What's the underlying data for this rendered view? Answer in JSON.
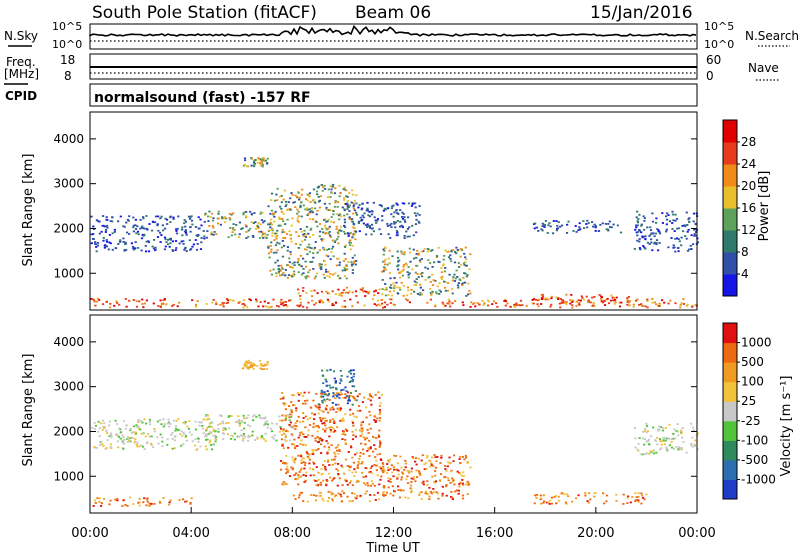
{
  "header": {
    "title": "South Pole Station (fitACF)",
    "beam": "Beam 06",
    "date": "15/Jan/2016"
  },
  "top_panels": {
    "nsky_label": "N.Sky",
    "nsky_ticks": [
      "10^5",
      "10^0"
    ],
    "nsearch_label": "N.Search",
    "nsearch_ticks": [
      "10^5",
      "10^0"
    ],
    "freq_label": "Freq.",
    "freq_unit": "[MHz]",
    "freq_ticks": [
      "18",
      "8"
    ],
    "nave_label": "Nave",
    "nave_ticks": [
      "60",
      "0"
    ],
    "cpid_label": "CPID",
    "cpid_text": "normalsound (fast) -157 RF"
  },
  "chart_data": [
    {
      "type": "heatmap",
      "panel": "power",
      "ylabel": "Slant Range [km]",
      "ylim": [
        180,
        4600
      ],
      "yticks": [
        "1000",
        "2000",
        "3000",
        "4000"
      ],
      "xlim_hours": [
        0,
        24
      ],
      "colorbar_label": "Power [dB]",
      "colorbar_ticks": [
        "4",
        "8",
        "12",
        "16",
        "20",
        "24",
        "28"
      ],
      "colorbar_colors": [
        "#1515e6",
        "#2f4fa8",
        "#2f7a6a",
        "#5ea15a",
        "#e9c02b",
        "#f08b1a",
        "#e83b1b",
        "#e00000"
      ],
      "echo_regions": [
        {
          "t": [
            0.0,
            24.0
          ],
          "r": [
            250,
            450
          ],
          "level": "high"
        },
        {
          "t": [
            8.0,
            11.5
          ],
          "r": [
            500,
            700
          ],
          "level": "high"
        },
        {
          "t": [
            17.5,
            21.5
          ],
          "r": [
            350,
            550
          ],
          "level": "high"
        },
        {
          "t": [
            0.0,
            4.5
          ],
          "r": [
            1500,
            2300
          ],
          "level": "low"
        },
        {
          "t": [
            4.5,
            7.5
          ],
          "r": [
            1800,
            2400
          ],
          "level": "mid"
        },
        {
          "t": [
            6.0,
            7.0
          ],
          "r": [
            3400,
            3600
          ],
          "level": "mid"
        },
        {
          "t": [
            7.0,
            10.5
          ],
          "r": [
            900,
            3000
          ],
          "level": "mid"
        },
        {
          "t": [
            10.0,
            13.0
          ],
          "r": [
            1800,
            2600
          ],
          "level": "low"
        },
        {
          "t": [
            11.5,
            15.0
          ],
          "r": [
            500,
            1600
          ],
          "level": "mid"
        },
        {
          "t": [
            17.5,
            21.0
          ],
          "r": [
            1900,
            2200
          ],
          "level": "low"
        },
        {
          "t": [
            21.5,
            24.0
          ],
          "r": [
            1500,
            2400
          ],
          "level": "low"
        }
      ]
    },
    {
      "type": "heatmap",
      "panel": "velocity",
      "ylabel": "Slant Range [km]",
      "ylim": [
        180,
        4600
      ],
      "yticks": [
        "1000",
        "2000",
        "3000",
        "4000"
      ],
      "xlim_hours": [
        0,
        24
      ],
      "xticks": [
        "00:00",
        "04:00",
        "08:00",
        "12:00",
        "16:00",
        "20:00",
        "00:00"
      ],
      "xlabel": "Time UT",
      "colorbar_label": "Velocity [m s⁻¹]",
      "colorbar_ticks": [
        "1000",
        "500",
        "100",
        "25",
        "-25",
        "-100",
        "-500",
        "-1000"
      ],
      "colorbar_colors": [
        "#1e3cc8",
        "#2c6fb0",
        "#2f8a5e",
        "#52c43a",
        "#c8c8c8",
        "#f2c23a",
        "#f09a22",
        "#ee6a10",
        "#e01010"
      ],
      "echo_regions": [
        {
          "t": [
            0.0,
            4.0
          ],
          "r": [
            350,
            550
          ],
          "level": "negative"
        },
        {
          "t": [
            8.0,
            11.5
          ],
          "r": [
            450,
            700
          ],
          "level": "negative"
        },
        {
          "t": [
            17.5,
            22.0
          ],
          "r": [
            400,
            650
          ],
          "level": "negative"
        },
        {
          "t": [
            0.0,
            5.0
          ],
          "r": [
            1600,
            2300
          ],
          "level": "near-zero"
        },
        {
          "t": [
            4.5,
            8.0
          ],
          "r": [
            1800,
            2400
          ],
          "level": "near-zero"
        },
        {
          "t": [
            6.0,
            7.0
          ],
          "r": [
            3400,
            3600
          ],
          "level": "slightly-negative"
        },
        {
          "t": [
            7.5,
            11.5
          ],
          "r": [
            800,
            2900
          ],
          "level": "negative"
        },
        {
          "t": [
            11.5,
            15.0
          ],
          "r": [
            500,
            1500
          ],
          "level": "negative"
        },
        {
          "t": [
            9.0,
            10.5
          ],
          "r": [
            2600,
            3400
          ],
          "level": "positive"
        },
        {
          "t": [
            21.5,
            24.0
          ],
          "r": [
            1500,
            2200
          ],
          "level": "near-zero"
        }
      ]
    }
  ]
}
